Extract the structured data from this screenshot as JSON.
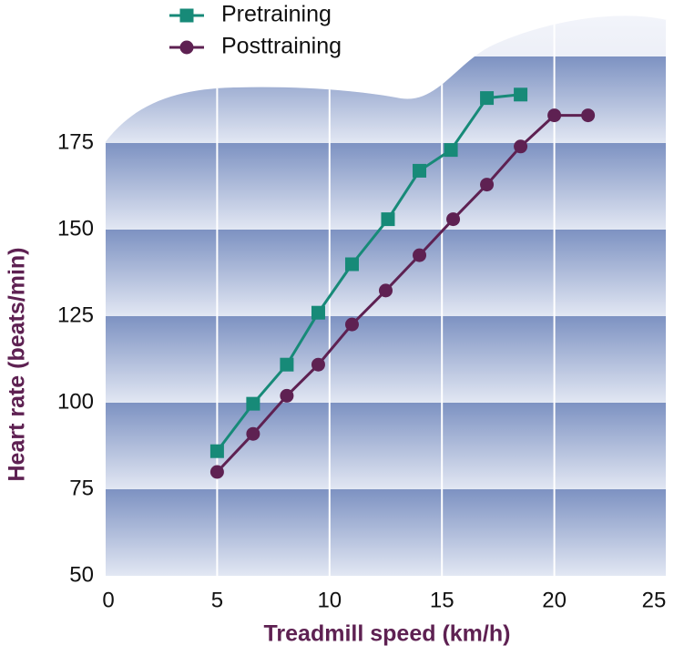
{
  "chart_data": {
    "type": "line",
    "x_label": "Treadmill speed (km/h)",
    "y_label": "Heart rate (beats/min)",
    "xlim": [
      0,
      25
    ],
    "xticks": [
      0,
      5,
      10,
      15,
      20,
      25
    ],
    "ylim": [
      50,
      200
    ],
    "yticks": [
      50,
      75,
      100,
      125,
      150,
      175
    ],
    "grid": true,
    "series": [
      {
        "name": "Pretraining",
        "color": "#178a78",
        "marker": "square",
        "x": [
          5,
          6.6,
          8.1,
          9.5,
          11,
          12.6,
          14,
          15.4,
          17,
          18.5
        ],
        "values": [
          86,
          99.7,
          111,
          126,
          140,
          153,
          167,
          173,
          188,
          189
        ]
      },
      {
        "name": "Posttraining",
        "color": "#5e2152",
        "marker": "circle",
        "x": [
          5,
          6.6,
          8.1,
          9.5,
          11,
          12.5,
          14,
          15.5,
          17,
          18.5,
          20,
          21.5
        ],
        "values": [
          80,
          91,
          102,
          111,
          122.6,
          132.4,
          142.6,
          153,
          163,
          174,
          183,
          183
        ]
      }
    ]
  }
}
